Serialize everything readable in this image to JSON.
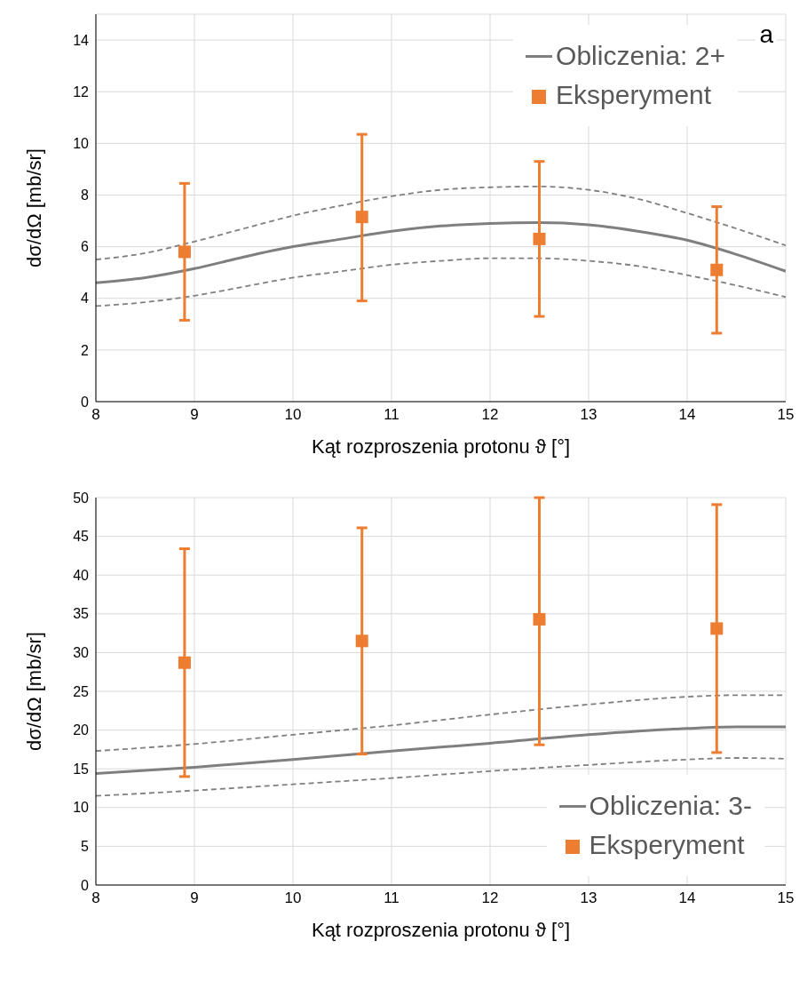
{
  "chart_data": [
    {
      "type": "scatter",
      "annotations": [
        "a"
      ],
      "xlabel": "Kąt rozproszenia protonu ϑ [°]",
      "ylabel": "dσ/dΩ [mb/sr]",
      "xlim": [
        8,
        15
      ],
      "xticks": [
        8,
        9,
        10,
        11,
        12,
        13,
        14,
        15
      ],
      "ylim": [
        0,
        15
      ],
      "yticks": [
        0,
        2,
        4,
        6,
        8,
        10,
        12,
        14
      ],
      "grid": true,
      "legend": "top right",
      "series": [
        {
          "type": "line",
          "name": "Obliczenia: 2+",
          "color": "#7f7f7f",
          "line_style": "solid",
          "marker": "none",
          "x": [
            8,
            8.5,
            9,
            9.5,
            10,
            10.5,
            11,
            11.5,
            12,
            12.5,
            13,
            13.5,
            14,
            14.5,
            15
          ],
          "values": [
            4.6,
            4.8,
            5.15,
            5.6,
            6.0,
            6.3,
            6.6,
            6.8,
            6.9,
            6.93,
            6.85,
            6.6,
            6.25,
            5.7,
            5.05
          ]
        },
        {
          "type": "line",
          "color": "#7f7f7f",
          "line_style": "dashed",
          "marker": "none",
          "x": [
            8,
            8.5,
            9,
            9.5,
            10,
            10.5,
            11,
            11.5,
            12,
            12.5,
            13,
            13.5,
            14,
            14.5,
            15
          ],
          "values": [
            5.5,
            5.75,
            6.2,
            6.7,
            7.2,
            7.6,
            7.95,
            8.2,
            8.3,
            8.33,
            8.2,
            7.85,
            7.3,
            6.7,
            6.05
          ]
        },
        {
          "type": "line",
          "color": "#7f7f7f",
          "line_style": "dashed",
          "marker": "none",
          "x": [
            8,
            8.5,
            9,
            9.5,
            10,
            10.5,
            11,
            11.5,
            12,
            12.5,
            13,
            13.5,
            14,
            14.5,
            15
          ],
          "values": [
            3.7,
            3.85,
            4.1,
            4.45,
            4.8,
            5.05,
            5.3,
            5.45,
            5.55,
            5.55,
            5.45,
            5.25,
            4.9,
            4.5,
            4.05
          ]
        },
        {
          "name": "Eksperyment",
          "color": "#ed7d31",
          "marker": "square",
          "x": [
            8.9,
            10.7,
            12.5,
            14.3
          ],
          "values": [
            5.8,
            7.15,
            6.3,
            5.1
          ],
          "errors": [
            [
              3.15,
              8.45
            ],
            [
              3.9,
              10.35
            ],
            [
              3.3,
              9.3
            ],
            [
              2.65,
              7.55
            ]
          ]
        }
      ]
    },
    {
      "type": "scatter",
      "xlabel": "Kąt rozproszenia protonu ϑ [°]",
      "ylabel": "dσ/dΩ [mb/sr]",
      "xlim": [
        8,
        15
      ],
      "xticks": [
        8,
        9,
        10,
        11,
        12,
        13,
        14,
        15
      ],
      "ylim": [
        0,
        50
      ],
      "yticks": [
        0,
        5,
        10,
        15,
        20,
        25,
        30,
        35,
        40,
        45,
        50
      ],
      "grid": true,
      "legend": "bottom right",
      "series": [
        {
          "type": "line",
          "name": "Obliczenia: 3-",
          "color": "#7f7f7f",
          "line_style": "solid",
          "marker": "none",
          "x": [
            8,
            9,
            10,
            11,
            12,
            13,
            14,
            14.5,
            15
          ],
          "values": [
            14.4,
            15.2,
            16.2,
            17.3,
            18.3,
            19.4,
            20.2,
            20.4,
            20.4
          ]
        },
        {
          "type": "line",
          "color": "#7f7f7f",
          "line_style": "dashed",
          "marker": "none",
          "x": [
            8,
            9,
            10,
            11,
            12,
            13,
            14,
            14.5,
            15
          ],
          "values": [
            17.3,
            18.2,
            19.4,
            20.6,
            22.0,
            23.3,
            24.3,
            24.5,
            24.5
          ]
        },
        {
          "type": "line",
          "color": "#7f7f7f",
          "line_style": "dashed",
          "marker": "none",
          "x": [
            8,
            9,
            10,
            11,
            12,
            13,
            14,
            14.5,
            15
          ],
          "values": [
            11.5,
            12.2,
            13.0,
            13.8,
            14.7,
            15.5,
            16.2,
            16.4,
            16.3
          ]
        },
        {
          "name": "Eksperyment",
          "color": "#ed7d31",
          "marker": "square",
          "x": [
            8.9,
            10.7,
            12.5,
            14.3
          ],
          "values": [
            28.7,
            31.5,
            34.3,
            33.1
          ],
          "errors": [
            [
              14,
              43.4
            ],
            [
              16.9,
              46.1
            ],
            [
              18.1,
              50
            ],
            [
              17.1,
              49.1
            ]
          ]
        }
      ]
    }
  ]
}
